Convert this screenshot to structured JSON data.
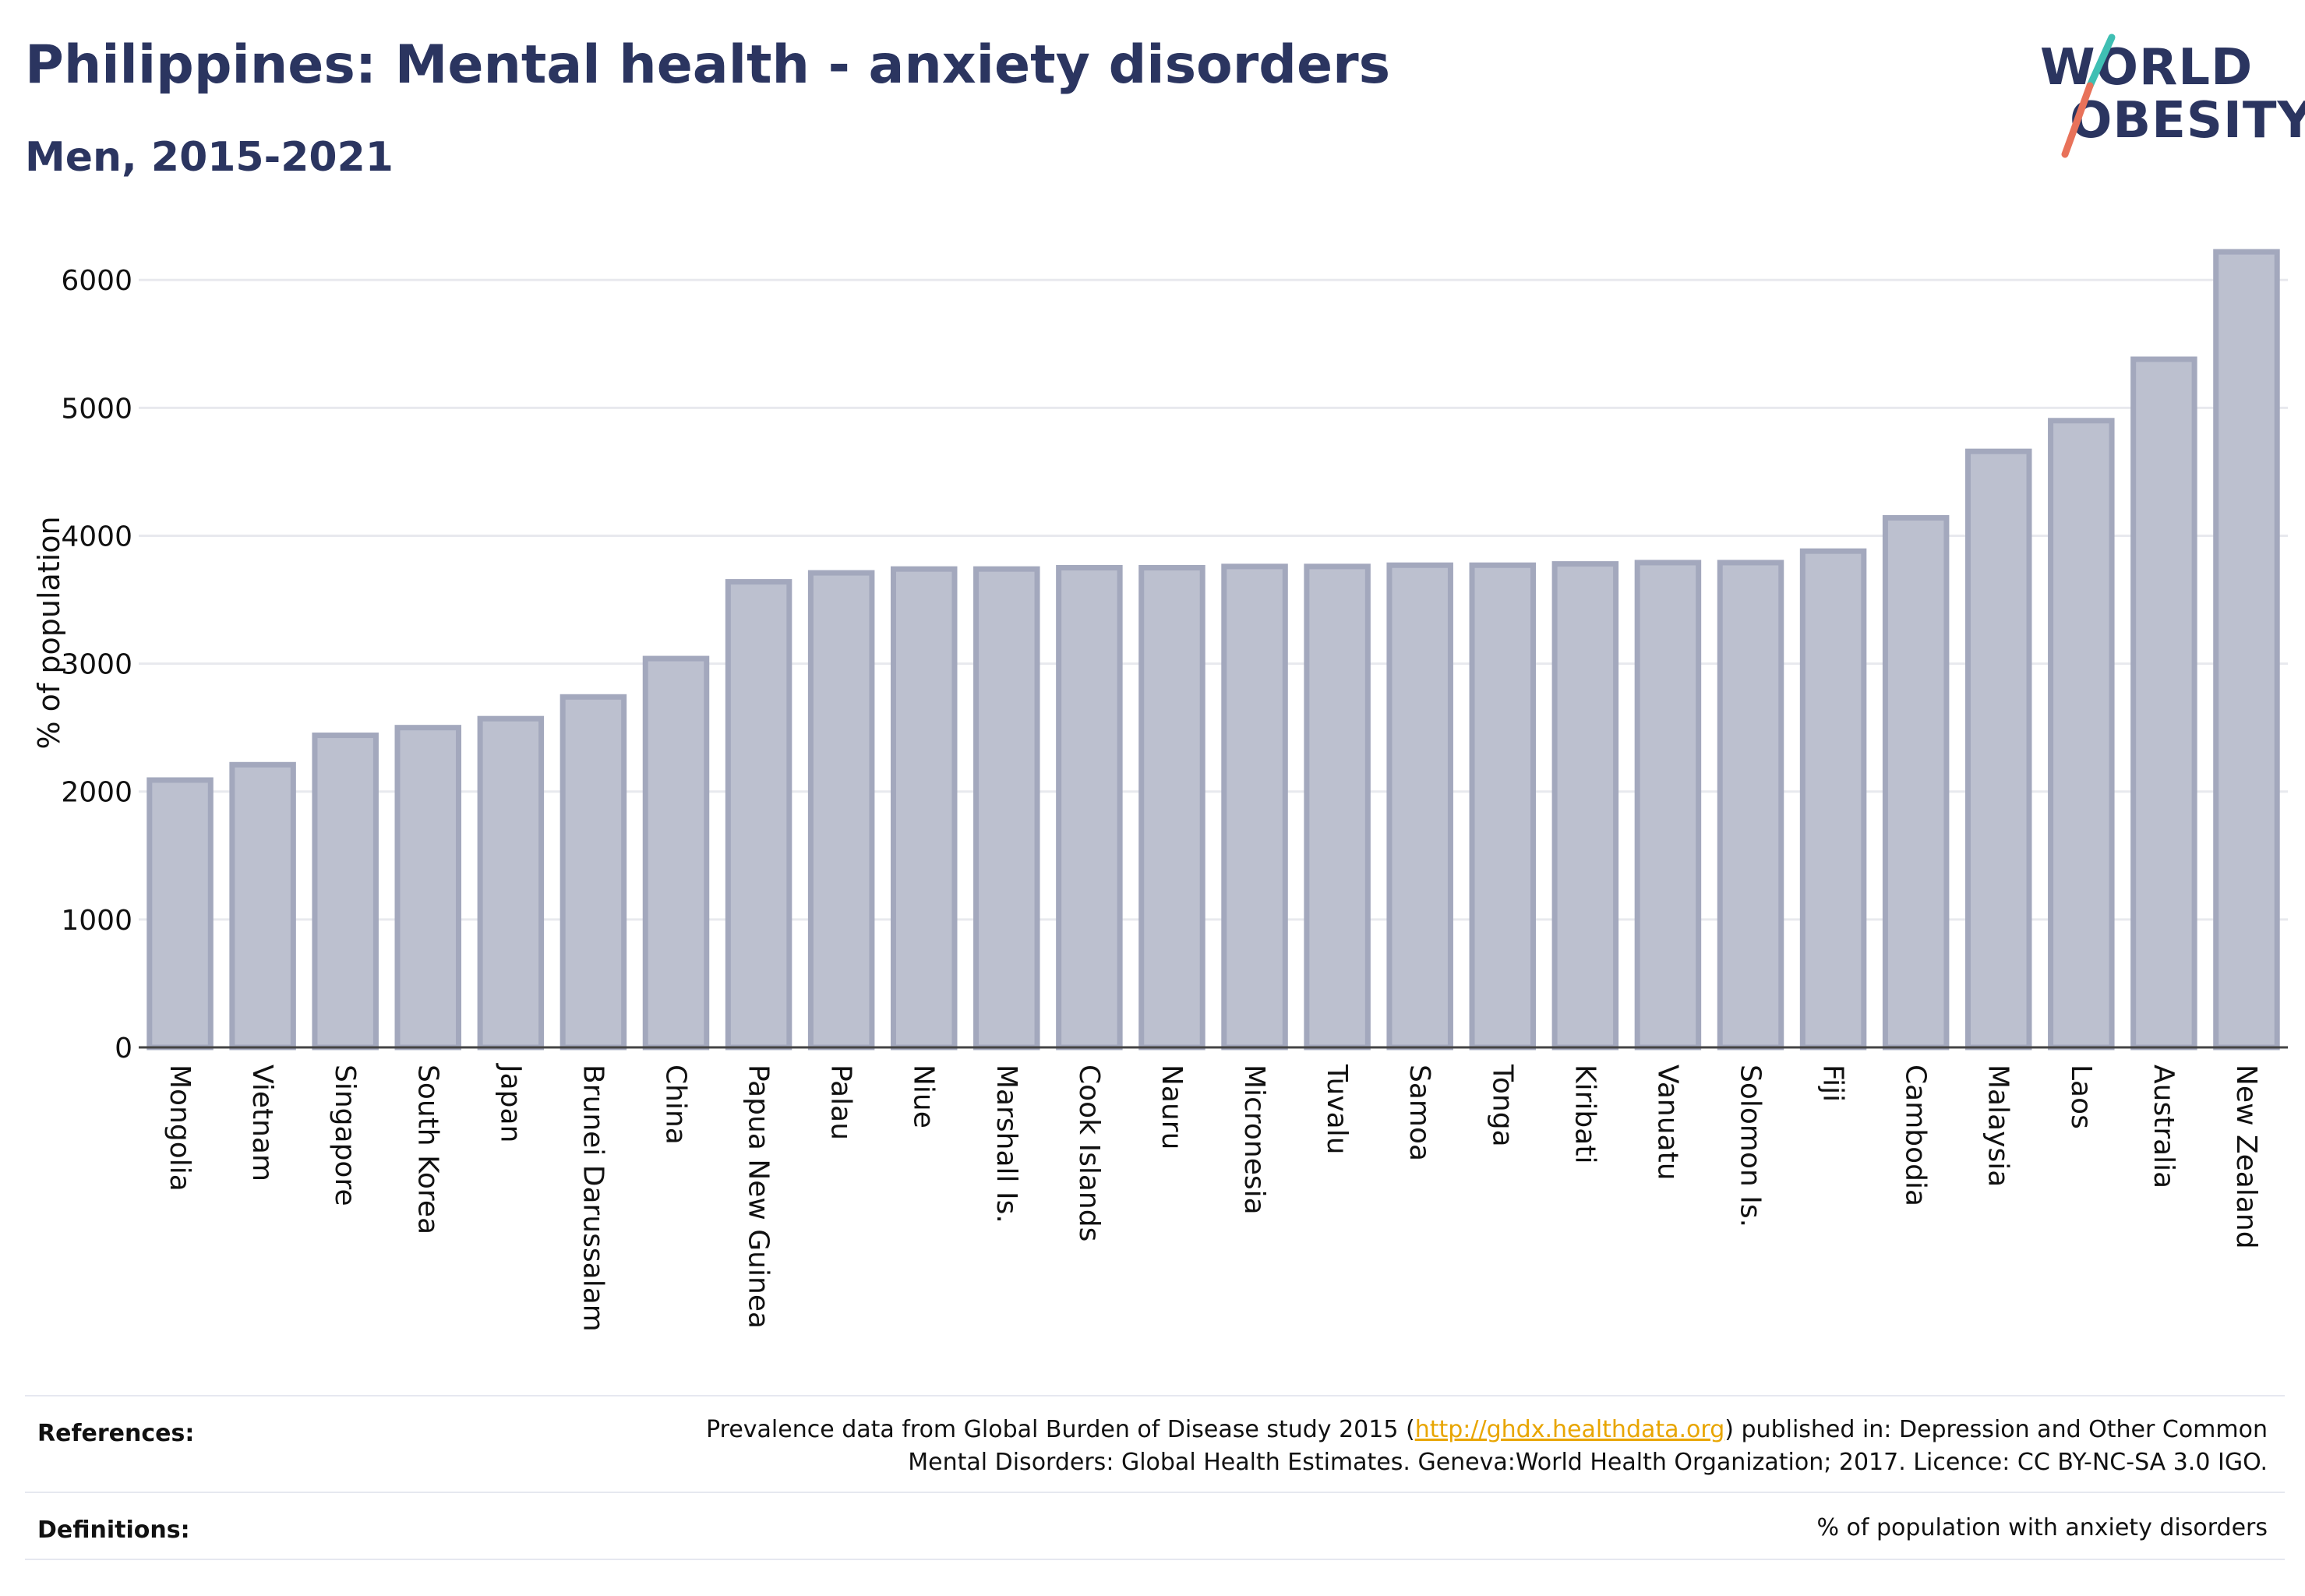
{
  "header": {
    "title": "Philippines: Mental health - anxiety disorders",
    "subtitle": "Men, 2015-2021"
  },
  "logo": {
    "line1": "WORLD",
    "line2": "OBESITY",
    "accent_colors": [
      "#3fbfb3",
      "#e8725a"
    ]
  },
  "colors": {
    "bar_fill": "#bcc0cf",
    "bar_stroke": "#a3a8bd",
    "text": "#2b3560",
    "grid": "#e8e9ee",
    "link": "#e8a500"
  },
  "chart_data": {
    "type": "bar",
    "title": "Philippines: Mental health - anxiety disorders",
    "subtitle": "Men, 2015-2021",
    "xlabel": "",
    "ylabel": "% of population",
    "ylim": [
      0,
      6300
    ],
    "yticks": [
      0,
      1000,
      2000,
      3000,
      4000,
      5000,
      6000
    ],
    "grid": true,
    "categories": [
      "Mongolia",
      "Vietnam",
      "Singapore",
      "South Korea",
      "Japan",
      "Brunei Darussalam",
      "China",
      "Papua New Guinea",
      "Palau",
      "Niue",
      "Marshall Is.",
      "Cook Islands",
      "Nauru",
      "Micronesia",
      "Tuvalu",
      "Samoa",
      "Tonga",
      "Kiribati",
      "Vanuatu",
      "Solomon Is.",
      "Fiji",
      "Cambodia",
      "Malaysia",
      "Laos",
      "Australia",
      "New Zealand"
    ],
    "values": [
      2090,
      2210,
      2440,
      2500,
      2570,
      2740,
      3040,
      3640,
      3710,
      3740,
      3740,
      3750,
      3750,
      3760,
      3760,
      3770,
      3770,
      3780,
      3790,
      3790,
      3880,
      4140,
      4660,
      4900,
      5380,
      6220
    ]
  },
  "footer": {
    "references_label": "References:",
    "references_text_before": "Prevalence data from Global Burden of Disease study 2015 (",
    "references_link": "http://ghdx.healthdata.org",
    "references_text_after": ") published in: Depression and Other Common",
    "references_line2": "Mental Disorders: Global Health Estimates. Geneva:World Health Organization; 2017. Licence: CC BY-NC-SA 3.0 IGO.",
    "definitions_label": "Definitions:",
    "definitions_text": "% of population with anxiety disorders"
  }
}
